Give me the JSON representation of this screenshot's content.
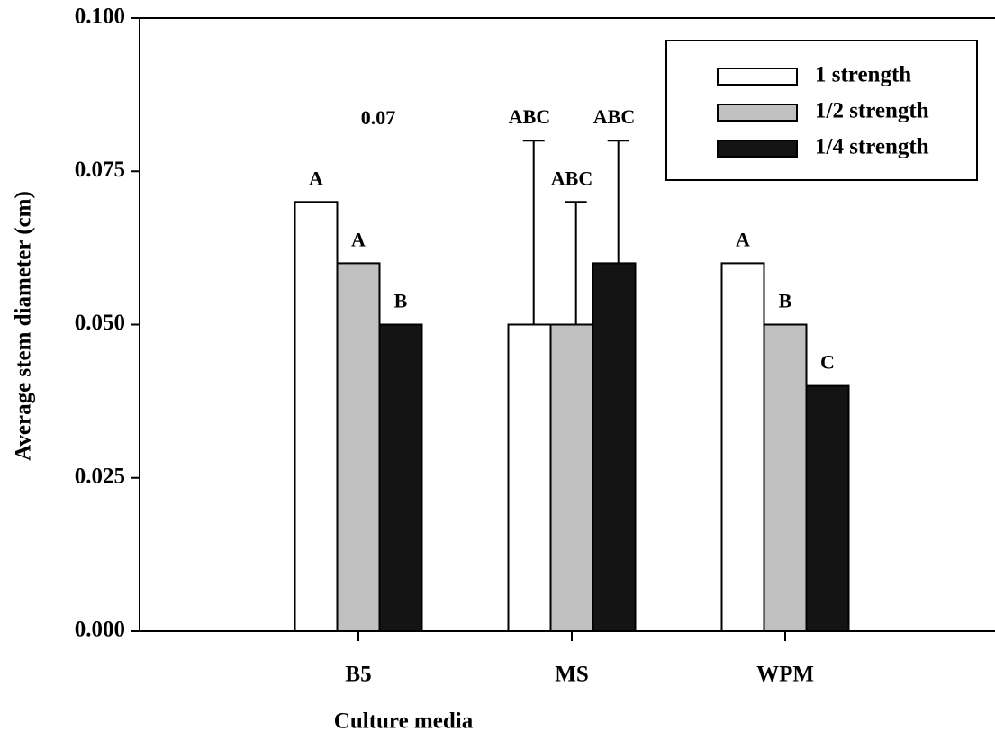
{
  "chart_data": {
    "type": "bar",
    "x_label": "Culture media",
    "y_label": "Average stem diameter (cm)",
    "annotation": "0.07",
    "categories": [
      "B5",
      "MS",
      "WPM"
    ],
    "series": [
      {
        "name": "1 strength",
        "color": "#ffffff",
        "values": [
          0.07,
          0.05,
          0.06
        ],
        "errors": [
          null,
          0.03,
          null
        ],
        "letters": [
          "A",
          "ABC",
          "A"
        ]
      },
      {
        "name": "1/2 strength",
        "color": "#c0c0c0",
        "values": [
          0.06,
          0.05,
          0.05
        ],
        "errors": [
          null,
          0.02,
          null
        ],
        "letters": [
          "A",
          "ABC",
          "B"
        ]
      },
      {
        "name": "1/4 strength",
        "color": "#141414",
        "values": [
          0.05,
          0.06,
          0.04
        ],
        "errors": [
          null,
          0.02,
          null
        ],
        "letters": [
          "B",
          "ABC",
          "C"
        ]
      }
    ],
    "ylim": [
      0,
      0.1
    ],
    "yticks": [
      {
        "value": 0,
        "label": "0.000"
      },
      {
        "value": 0.025,
        "label": "0.025"
      },
      {
        "value": 0.05,
        "label": "0.050"
      },
      {
        "value": 0.075,
        "label": "0.075"
      },
      {
        "value": 0.1,
        "label": "0.100"
      }
    ],
    "legend": "upper right"
  }
}
